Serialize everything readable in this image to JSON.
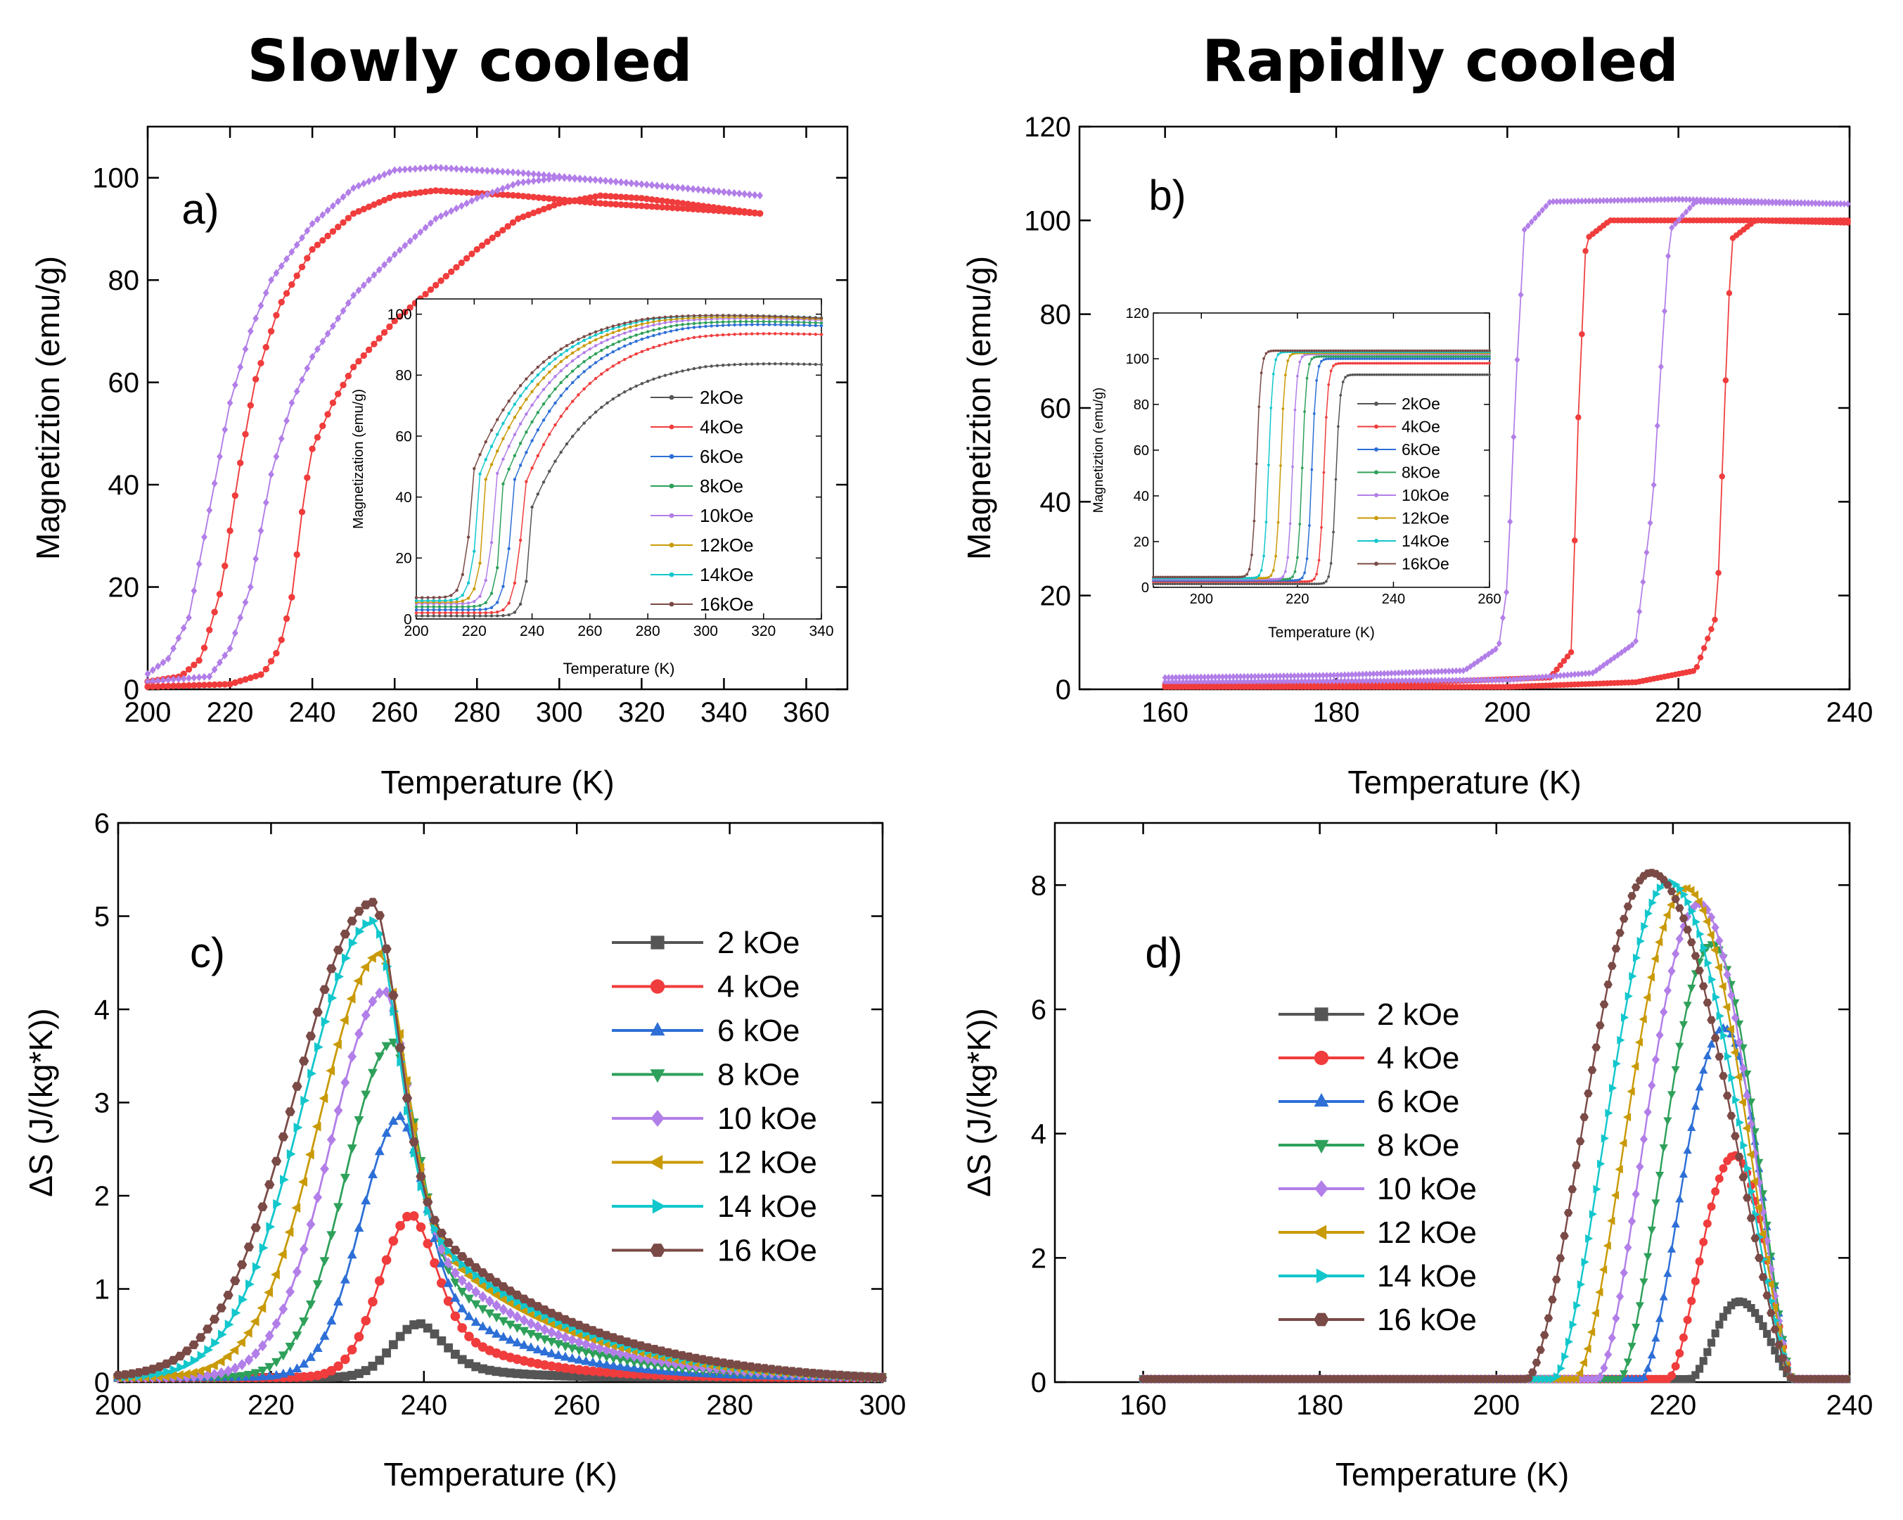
{
  "headings": {
    "left": "Slowly cooled",
    "right": "Rapidly cooled"
  },
  "colors": {
    "2kOe": "#555555",
    "4kOe": "#f03c3c",
    "6kOe": "#2d6fd6",
    "8kOe": "#2ea05a",
    "10kOe": "#b27ee8",
    "12kOe": "#c99a06",
    "14kOe": "#12c7cc",
    "16kOe": "#7a4a46"
  },
  "chart_data": [
    {
      "id": "a",
      "type": "line",
      "panel_label": "a)",
      "xlabel": "Temperature (K)",
      "ylabel": "Magnetiztion (emu/g)",
      "xlim": [
        200,
        370
      ],
      "ylim": [
        0,
        110
      ],
      "xticks": [
        "200",
        "220",
        "240",
        "260",
        "280",
        "300",
        "320",
        "340",
        "360"
      ],
      "yticks": [
        "0",
        "20",
        "40",
        "60",
        "80",
        "100"
      ],
      "series": [
        {
          "name": "purple cooling",
          "color_key": "10kOe",
          "marker": "diamond",
          "values": [
            [
              200,
              3
            ],
            [
              205,
              6
            ],
            [
              210,
              14
            ],
            [
              215,
              35
            ],
            [
              220,
              56
            ],
            [
              225,
              70
            ],
            [
              230,
              80
            ],
            [
              240,
              91
            ],
            [
              250,
              98
            ],
            [
              260,
              101.5
            ],
            [
              270,
              102
            ],
            [
              290,
              101
            ],
            [
              310,
              99.5
            ],
            [
              330,
              98
            ],
            [
              349,
              96.5
            ]
          ]
        },
        {
          "name": "red cooling",
          "color_key": "4kOe",
          "marker": "circle",
          "values": [
            [
              200,
              1.5
            ],
            [
              208,
              2.5
            ],
            [
              213,
              6
            ],
            [
              218,
              20
            ],
            [
              222,
              42
            ],
            [
              226,
              60
            ],
            [
              232,
              75
            ],
            [
              240,
              86
            ],
            [
              250,
              93
            ],
            [
              260,
              96.5
            ],
            [
              270,
              97.5
            ],
            [
              290,
              96.5
            ],
            [
              310,
              95
            ],
            [
              330,
              94
            ],
            [
              349,
              93
            ]
          ]
        },
        {
          "name": "purple heating",
          "color_key": "10kOe",
          "marker": "diamond",
          "values": [
            [
              200,
              1.5
            ],
            [
              215,
              2.5
            ],
            [
              220,
              8
            ],
            [
              225,
              20
            ],
            [
              230,
              42
            ],
            [
              235,
              56
            ],
            [
              240,
              65
            ],
            [
              250,
              77
            ],
            [
              260,
              85
            ],
            [
              270,
              92
            ],
            [
              280,
              96
            ],
            [
              290,
              99
            ],
            [
              300,
              100
            ],
            [
              310,
              99.5
            ],
            [
              330,
              98
            ],
            [
              349,
              96.5
            ]
          ]
        },
        {
          "name": "red heating",
          "color_key": "4kOe",
          "marker": "circle",
          "values": [
            [
              200,
              0.5
            ],
            [
              220,
              1
            ],
            [
              228,
              3
            ],
            [
              232,
              8
            ],
            [
              235,
              18
            ],
            [
              238,
              38
            ],
            [
              240,
              47
            ],
            [
              245,
              56
            ],
            [
              250,
              63
            ],
            [
              260,
              72
            ],
            [
              270,
              79
            ],
            [
              280,
              86
            ],
            [
              290,
              92
            ],
            [
              300,
              95
            ],
            [
              310,
              96.5
            ],
            [
              320,
              96
            ],
            [
              330,
              95
            ],
            [
              349,
              93
            ]
          ]
        }
      ],
      "inset": {
        "xlabel": "Temperature (K)",
        "ylabel": "Magnetization (emu/g)",
        "xlim": [
          200,
          340
        ],
        "ylim": [
          0,
          105
        ],
        "xticks": [
          "200",
          "220",
          "240",
          "260",
          "280",
          "300",
          "320",
          "340"
        ],
        "yticks": [
          "0",
          "20",
          "40",
          "60",
          "80",
          "100"
        ],
        "series": [
          {
            "name": "2kOe",
            "tc": 240,
            "base": 1,
            "max": 86
          },
          {
            "name": "4kOe",
            "tc": 236.5,
            "base": 2,
            "max": 96
          },
          {
            "name": "6kOe",
            "tc": 233,
            "base": 3,
            "max": 99
          },
          {
            "name": "8kOe",
            "tc": 230,
            "base": 4,
            "max": 100
          },
          {
            "name": "10kOe",
            "tc": 227,
            "base": 5,
            "max": 101
          },
          {
            "name": "12kOe",
            "tc": 224,
            "base": 5.5,
            "max": 101.5
          },
          {
            "name": "14kOe",
            "tc": 221.5,
            "base": 6,
            "max": 102
          },
          {
            "name": "16kOe",
            "tc": 219,
            "base": 7,
            "max": 102
          }
        ]
      }
    },
    {
      "id": "b",
      "type": "line",
      "panel_label": "b)",
      "xlabel": "Temperature (K)",
      "ylabel": "Magnetiztion (emu/g)",
      "xlim": [
        150,
        240
      ],
      "ylim": [
        0,
        120
      ],
      "xticks": [
        "160",
        "180",
        "200",
        "220",
        "240"
      ],
      "yticks": [
        "0",
        "20",
        "40",
        "60",
        "80",
        "100",
        "120"
      ],
      "series": [
        {
          "name": "purple cooling",
          "color_key": "10kOe",
          "marker": "diamond",
          "values": [
            [
              160,
              2.5
            ],
            [
              180,
              3
            ],
            [
              195,
              4
            ],
            [
              199,
              9
            ],
            [
              200,
              22
            ],
            [
              201,
              65
            ],
            [
              202,
              98
            ],
            [
              205,
              104
            ],
            [
              220,
              104.5
            ],
            [
              240,
              103.5
            ]
          ]
        },
        {
          "name": "red cooling",
          "color_key": "4kOe",
          "marker": "circle",
          "values": [
            [
              160,
              1
            ],
            [
              190,
              1.5
            ],
            [
              205,
              2.5
            ],
            [
              207.5,
              8
            ],
            [
              208.3,
              58
            ],
            [
              209.2,
              96
            ],
            [
              212,
              100
            ],
            [
              240,
              100
            ]
          ]
        },
        {
          "name": "purple heating",
          "color_key": "10kOe",
          "marker": "diamond",
          "values": [
            [
              160,
              1.5
            ],
            [
              200,
              2
            ],
            [
              210,
              3.5
            ],
            [
              215,
              10
            ],
            [
              217,
              40
            ],
            [
              218,
              70
            ],
            [
              219,
              98
            ],
            [
              222,
              104
            ],
            [
              240,
              103.5
            ]
          ]
        },
        {
          "name": "red heating",
          "color_key": "4kOe",
          "marker": "circle",
          "values": [
            [
              160,
              0.5
            ],
            [
              200,
              0.5
            ],
            [
              215,
              1.5
            ],
            [
              222,
              4
            ],
            [
              224.5,
              16
            ],
            [
              225.5,
              65
            ],
            [
              226.2,
              96
            ],
            [
              229,
              100
            ],
            [
              240,
              99.5
            ]
          ]
        }
      ],
      "inset": {
        "xlabel": "Temperature (K)",
        "ylabel": "Magnetiztion (emu/g)",
        "xlim": [
          190,
          260
        ],
        "ylim": [
          0,
          120
        ],
        "xticks": [
          "200",
          "220",
          "240",
          "260"
        ],
        "yticks": [
          "0",
          "20",
          "40",
          "60",
          "80",
          "100",
          "120"
        ],
        "series": [
          {
            "name": "2kOe",
            "tc": 228,
            "base": 1.5,
            "max": 93
          },
          {
            "name": "4kOe",
            "tc": 225.5,
            "base": 2.5,
            "max": 98
          },
          {
            "name": "6kOe",
            "tc": 223,
            "base": 3,
            "max": 100
          },
          {
            "name": "8kOe",
            "tc": 221,
            "base": 3.5,
            "max": 101
          },
          {
            "name": "10kOe",
            "tc": 219,
            "base": 3.5,
            "max": 102
          },
          {
            "name": "12kOe",
            "tc": 216.5,
            "base": 4,
            "max": 102.5
          },
          {
            "name": "14kOe",
            "tc": 214,
            "base": 4,
            "max": 103
          },
          {
            "name": "16kOe",
            "tc": 211.5,
            "base": 4.5,
            "max": 103.5
          }
        ]
      }
    },
    {
      "id": "c",
      "type": "line",
      "panel_label": "c)",
      "xlabel": "Temperature (K)",
      "ylabel": "ΔS (J/(kg*K))",
      "xlim": [
        200,
        300
      ],
      "ylim": [
        0,
        6
      ],
      "xticks": [
        "200",
        "220",
        "240",
        "260",
        "280",
        "300"
      ],
      "yticks": [
        "0",
        "1",
        "2",
        "3",
        "4",
        "5",
        "6"
      ],
      "series": [
        {
          "name": "2 kOe",
          "color_key": "2kOe",
          "marker": "square",
          "peak": 239.5,
          "height": 0.58,
          "left_width": 3.5,
          "decay": 8
        },
        {
          "name": "4 kOe",
          "color_key": "4kOe",
          "marker": "circle",
          "peak": 238.5,
          "height": 1.75,
          "left_width": 4.2,
          "decay": 12
        },
        {
          "name": "6 kOe",
          "color_key": "6kOe",
          "marker": "triangle-up",
          "peak": 237,
          "height": 2.8,
          "left_width": 5.2,
          "decay": 16
        },
        {
          "name": "8 kOe",
          "color_key": "8kOe",
          "marker": "triangle-down",
          "peak": 236,
          "height": 3.6,
          "left_width": 6.2,
          "decay": 20
        },
        {
          "name": "10 kOe",
          "color_key": "10kOe",
          "marker": "diamond",
          "peak": 235,
          "height": 4.15,
          "left_width": 7.2,
          "decay": 23
        },
        {
          "name": "12 kOe",
          "color_key": "12kOe",
          "marker": "triangle-left",
          "peak": 234.5,
          "height": 4.55,
          "left_width": 8.2,
          "decay": 26
        },
        {
          "name": "14 kOe",
          "color_key": "14kOe",
          "marker": "triangle-right",
          "peak": 233.5,
          "height": 4.9,
          "left_width": 9.2,
          "decay": 28
        },
        {
          "name": "16 kOe",
          "color_key": "16kOe",
          "marker": "hexagon",
          "peak": 233.5,
          "height": 5.1,
          "left_width": 10.2,
          "decay": 30
        }
      ]
    },
    {
      "id": "d",
      "type": "line",
      "panel_label": "d)",
      "xlabel": "Temperature (K)",
      "ylabel": "ΔS (J/(kg*K))",
      "xlim": [
        150,
        240
      ],
      "ylim": [
        0,
        9
      ],
      "xticks": [
        "160",
        "180",
        "200",
        "220",
        "240"
      ],
      "yticks": [
        "0",
        "2",
        "4",
        "6",
        "8"
      ],
      "series": [
        {
          "name": "2 kOe",
          "color_key": "2kOe",
          "marker": "square",
          "start": 222,
          "peak": 227.5,
          "height": 1.25
        },
        {
          "name": "4 kOe",
          "color_key": "4kOe",
          "marker": "circle",
          "start": 219.5,
          "peak": 227,
          "height": 3.6
        },
        {
          "name": "6 kOe",
          "color_key": "6kOe",
          "marker": "triangle-up",
          "start": 216.5,
          "peak": 225.8,
          "height": 5.65
        },
        {
          "name": "8 kOe",
          "color_key": "8kOe",
          "marker": "triangle-down",
          "start": 214,
          "peak": 224.5,
          "height": 7.0
        },
        {
          "name": "10 kOe",
          "color_key": "10kOe",
          "marker": "diamond",
          "start": 211.5,
          "peak": 223,
          "height": 7.65
        },
        {
          "name": "12 kOe",
          "color_key": "12kOe",
          "marker": "triangle-left",
          "start": 209,
          "peak": 221.5,
          "height": 7.9
        },
        {
          "name": "14 kOe",
          "color_key": "14kOe",
          "marker": "triangle-right",
          "start": 206.5,
          "peak": 219.5,
          "height": 8.0
        },
        {
          "name": "16 kOe",
          "color_key": "16kOe",
          "marker": "hexagon",
          "start": 203.5,
          "peak": 217.5,
          "height": 8.15
        }
      ]
    }
  ]
}
